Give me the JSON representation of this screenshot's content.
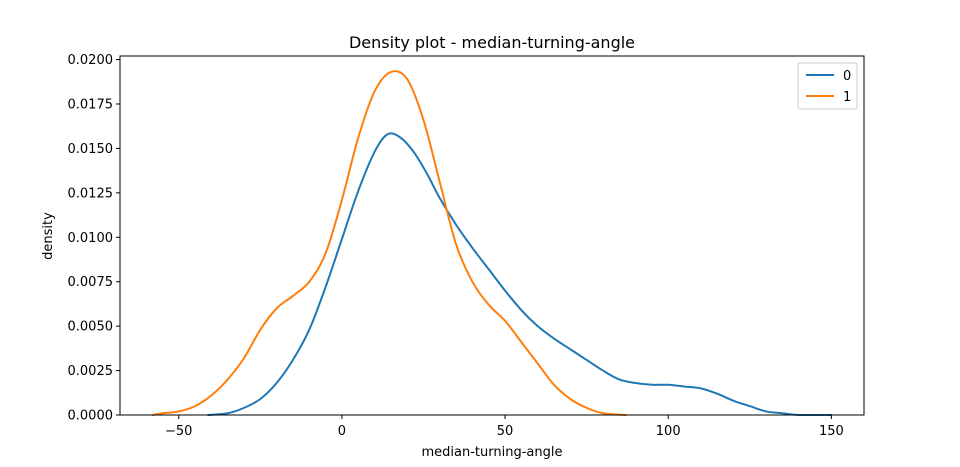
{
  "chart_data": {
    "type": "line",
    "title": "Density plot - median-turning-angle",
    "xlabel": "median-turning-angle",
    "ylabel": "density",
    "xlim": [
      -68,
      160
    ],
    "ylim": [
      0,
      0.0202
    ],
    "xticks": [
      -50,
      0,
      50,
      100,
      150
    ],
    "xtick_labels": [
      "−50",
      "0",
      "50",
      "100",
      "150"
    ],
    "yticks": [
      0,
      0.0025,
      0.005,
      0.0075,
      0.01,
      0.0125,
      0.015,
      0.0175,
      0.02
    ],
    "ytick_labels": [
      "0.0000",
      "0.0025",
      "0.0050",
      "0.0075",
      "0.0100",
      "0.0125",
      "0.0150",
      "0.0175",
      "0.0200"
    ],
    "grid": false,
    "legend_position": "top-right",
    "series": [
      {
        "name": "0",
        "color": "#1f77b4",
        "points": [
          [
            -41,
            0
          ],
          [
            -35,
            0.0001
          ],
          [
            -30,
            0.0004
          ],
          [
            -25,
            0.0009
          ],
          [
            -20,
            0.0018
          ],
          [
            -15,
            0.0031
          ],
          [
            -10,
            0.0048
          ],
          [
            -5,
            0.0072
          ],
          [
            0,
            0.0099
          ],
          [
            5,
            0.0126
          ],
          [
            10,
            0.0148
          ],
          [
            14,
            0.0158
          ],
          [
            18,
            0.0156
          ],
          [
            22,
            0.0148
          ],
          [
            26,
            0.0136
          ],
          [
            30,
            0.0122
          ],
          [
            35,
            0.0107
          ],
          [
            40,
            0.0094
          ],
          [
            45,
            0.0082
          ],
          [
            50,
            0.007
          ],
          [
            55,
            0.0059
          ],
          [
            60,
            0.005
          ],
          [
            65,
            0.0043
          ],
          [
            70,
            0.0037
          ],
          [
            75,
            0.0031
          ],
          [
            80,
            0.0025
          ],
          [
            85,
            0.002
          ],
          [
            90,
            0.0018
          ],
          [
            95,
            0.0017
          ],
          [
            100,
            0.0017
          ],
          [
            105,
            0.0016
          ],
          [
            110,
            0.0015
          ],
          [
            115,
            0.0012
          ],
          [
            120,
            0.0008
          ],
          [
            125,
            0.0005
          ],
          [
            130,
            0.0002
          ],
          [
            135,
            0.0001
          ],
          [
            140,
            0
          ],
          [
            150,
            0
          ]
        ]
      },
      {
        "name": "1",
        "color": "#ff7f0e",
        "points": [
          [
            -58,
            0
          ],
          [
            -55,
            0.0001
          ],
          [
            -50,
            0.0002
          ],
          [
            -45,
            0.0005
          ],
          [
            -40,
            0.0011
          ],
          [
            -35,
            0.002
          ],
          [
            -30,
            0.0032
          ],
          [
            -25,
            0.0048
          ],
          [
            -20,
            0.006
          ],
          [
            -15,
            0.0067
          ],
          [
            -10,
            0.0075
          ],
          [
            -5,
            0.0091
          ],
          [
            0,
            0.0121
          ],
          [
            5,
            0.0156
          ],
          [
            10,
            0.0182
          ],
          [
            15,
            0.0193
          ],
          [
            20,
            0.0189
          ],
          [
            25,
            0.0166
          ],
          [
            30,
            0.0131
          ],
          [
            35,
            0.0096
          ],
          [
            40,
            0.0075
          ],
          [
            45,
            0.0062
          ],
          [
            50,
            0.0053
          ],
          [
            55,
            0.0041
          ],
          [
            60,
            0.0029
          ],
          [
            65,
            0.0017
          ],
          [
            70,
            0.0009
          ],
          [
            75,
            0.0004
          ],
          [
            80,
            0.0001
          ],
          [
            87,
            0
          ]
        ]
      }
    ]
  }
}
